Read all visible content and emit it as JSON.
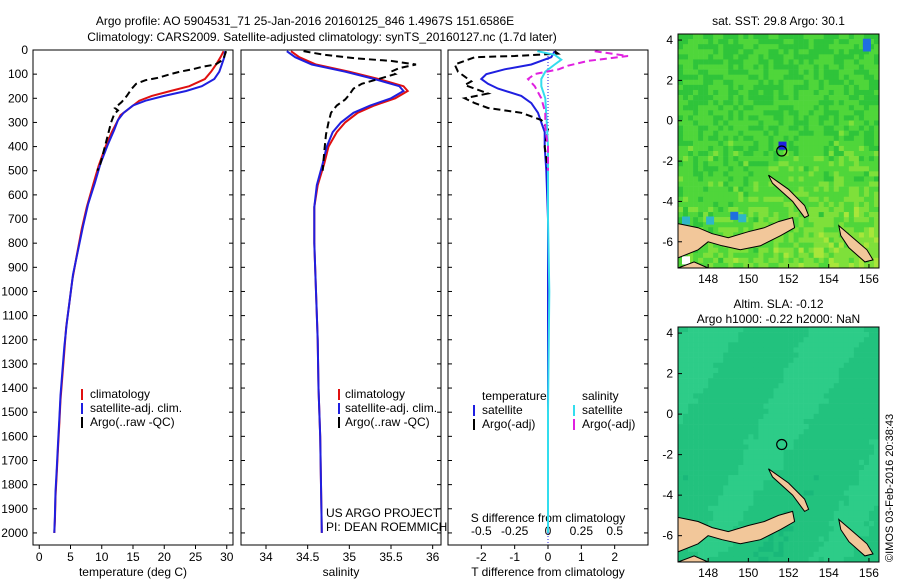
{
  "title": {
    "line1": "Argo profile: AO 5904531_71 25-Jan-2016 20160125_846 1.4967S 151.6586E",
    "line2": "Climatology: CARS2009. Satellite-adjusted climatology: synTS_20160127.nc (1.7d later)"
  },
  "depth_ticks": [
    0,
    100,
    200,
    300,
    400,
    500,
    600,
    700,
    800,
    900,
    1000,
    1100,
    1200,
    1300,
    1400,
    1500,
    1600,
    1700,
    1800,
    1900,
    2000
  ],
  "colors": {
    "climatology": "#e01010",
    "satellite": "#1f1fe0",
    "argo": "#000000",
    "salinity_sat": "#33ddee",
    "salinity_argo": "#e020e0",
    "land": "#f2c79a"
  },
  "chart_data": [
    {
      "type": "line",
      "xlabel": "temperature (deg C)",
      "xlim": [
        -1,
        31
      ],
      "ylim": [
        2050,
        0
      ],
      "x_ticks": [
        0,
        5,
        10,
        15,
        20,
        25,
        30
      ],
      "legend": {
        "placement": "bottom-left",
        "entries": [
          "climatology",
          "satellite-adj. clim.",
          "Argo(..raw -QC)"
        ]
      },
      "series": [
        {
          "name": "climatology",
          "color": "#e01010",
          "points": [
            [
              29.5,
              5
            ],
            [
              29,
              30
            ],
            [
              28.3,
              60
            ],
            [
              27.5,
              90
            ],
            [
              26.5,
              120
            ],
            [
              24,
              150
            ],
            [
              21,
              170
            ],
            [
              18,
              190
            ],
            [
              16,
              210
            ],
            [
              14.5,
              240
            ],
            [
              13,
              270
            ],
            [
              12.4,
              300
            ],
            [
              11.6,
              340
            ],
            [
              10.6,
              400
            ],
            [
              9.5,
              480
            ],
            [
              8.6,
              560
            ],
            [
              7.6,
              650
            ],
            [
              6.8,
              740
            ],
            [
              6,
              850
            ],
            [
              5.3,
              950
            ],
            [
              4.8,
              1050
            ],
            [
              4.3,
              1150
            ],
            [
              4,
              1250
            ],
            [
              3.7,
              1350
            ],
            [
              3.4,
              1450
            ],
            [
              3.2,
              1550
            ],
            [
              3,
              1650
            ],
            [
              2.8,
              1750
            ],
            [
              2.6,
              1850
            ],
            [
              2.5,
              1950
            ],
            [
              2.4,
              2000
            ]
          ]
        },
        {
          "name": "satellite-adj. clim.",
          "color": "#1f1fe0",
          "points": [
            [
              29.7,
              5
            ],
            [
              29.6,
              30
            ],
            [
              29.2,
              60
            ],
            [
              28.8,
              90
            ],
            [
              28,
              120
            ],
            [
              26,
              150
            ],
            [
              23.5,
              170
            ],
            [
              20,
              190
            ],
            [
              17,
              210
            ],
            [
              15,
              230
            ],
            [
              13.5,
              260
            ],
            [
              12.6,
              290
            ],
            [
              12,
              330
            ],
            [
              11,
              390
            ],
            [
              9.8,
              470
            ],
            [
              8.9,
              550
            ],
            [
              7.8,
              640
            ],
            [
              7,
              730
            ],
            [
              6.2,
              830
            ],
            [
              5.4,
              930
            ],
            [
              4.9,
              1030
            ],
            [
              4.4,
              1130
            ],
            [
              4,
              1230
            ],
            [
              3.7,
              1330
            ],
            [
              3.4,
              1430
            ],
            [
              3.2,
              1530
            ],
            [
              3,
              1630
            ],
            [
              2.8,
              1730
            ],
            [
              2.6,
              1830
            ],
            [
              2.5,
              1930
            ],
            [
              2.4,
              2000
            ]
          ]
        },
        {
          "name": "Argo(..raw -QC)",
          "color": "#000000",
          "points": [
            [
              29.9,
              5
            ],
            [
              29.7,
              20
            ],
            [
              29.4,
              40
            ],
            [
              28.2,
              60
            ],
            [
              26,
              70
            ],
            [
              24.5,
              80
            ],
            [
              22.5,
              90
            ],
            [
              21,
              100
            ],
            [
              19,
              115
            ],
            [
              17,
              125
            ],
            [
              15.5,
              140
            ],
            [
              14.8,
              160
            ],
            [
              14,
              190
            ],
            [
              13.2,
              215
            ],
            [
              12.1,
              240
            ],
            [
              12.6,
              250
            ],
            [
              12,
              265
            ],
            [
              11.5,
              300
            ],
            [
              11,
              350
            ],
            [
              10.5,
              400
            ],
            [
              9.8,
              470
            ],
            [
              9.3,
              500
            ]
          ]
        }
      ]
    },
    {
      "type": "line",
      "xlabel": "salinity",
      "xlim": [
        33.7,
        36.1
      ],
      "ylim": [
        2050,
        0
      ],
      "x_ticks": [
        34,
        34.5,
        35,
        35.5,
        36
      ],
      "x_tick_labels": [
        "34",
        "34.5",
        "35",
        "35.5",
        "36"
      ],
      "legend": {
        "placement": "bottom-left",
        "entries": [
          "climatology",
          "satellite-adj. clim.",
          "Argo(..raw -QC)"
        ]
      },
      "annotation": [
        "US ARGO PROJECT",
        "PI: DEAN ROEMMICH"
      ],
      "series": [
        {
          "name": "climatology",
          "color": "#e01010",
          "points": [
            [
              34.3,
              5
            ],
            [
              34.4,
              30
            ],
            [
              34.6,
              60
            ],
            [
              35,
              90
            ],
            [
              35.35,
              120
            ],
            [
              35.65,
              150
            ],
            [
              35.7,
              170
            ],
            [
              35.55,
              200
            ],
            [
              35.3,
              230
            ],
            [
              35.1,
              260
            ],
            [
              34.95,
              300
            ],
            [
              34.85,
              340
            ],
            [
              34.75,
              400
            ],
            [
              34.7,
              470
            ],
            [
              34.62,
              560
            ],
            [
              34.58,
              650
            ],
            [
              34.58,
              800
            ],
            [
              34.6,
              1000
            ],
            [
              34.62,
              1200
            ],
            [
              34.63,
              1400
            ],
            [
              34.65,
              1600
            ],
            [
              34.66,
              1800
            ],
            [
              34.67,
              2000
            ]
          ]
        },
        {
          "name": "satellite-adj. clim.",
          "color": "#1f1fe0",
          "points": [
            [
              34.25,
              5
            ],
            [
              34.35,
              30
            ],
            [
              34.55,
              60
            ],
            [
              34.95,
              90
            ],
            [
              35.3,
              120
            ],
            [
              35.6,
              150
            ],
            [
              35.65,
              170
            ],
            [
              35.5,
              200
            ],
            [
              35.25,
              230
            ],
            [
              35.05,
              260
            ],
            [
              34.9,
              300
            ],
            [
              34.8,
              340
            ],
            [
              34.73,
              400
            ],
            [
              34.68,
              470
            ],
            [
              34.61,
              560
            ],
            [
              34.58,
              650
            ],
            [
              34.58,
              800
            ],
            [
              34.6,
              1000
            ],
            [
              34.62,
              1200
            ],
            [
              34.63,
              1400
            ],
            [
              34.65,
              1600
            ],
            [
              34.66,
              1800
            ],
            [
              34.67,
              2000
            ]
          ]
        },
        {
          "name": "Argo(..raw -QC)",
          "color": "#000000",
          "points": [
            [
              34.45,
              5
            ],
            [
              34.7,
              20
            ],
            [
              35.1,
              35
            ],
            [
              35.5,
              45
            ],
            [
              35.8,
              60
            ],
            [
              35.6,
              75
            ],
            [
              35.5,
              90
            ],
            [
              35.55,
              100
            ],
            [
              35.4,
              115
            ],
            [
              35.3,
              125
            ],
            [
              35.15,
              140
            ],
            [
              35.05,
              160
            ],
            [
              35,
              185
            ],
            [
              34.95,
              205
            ],
            [
              34.85,
              230
            ],
            [
              34.78,
              260
            ],
            [
              34.75,
              300
            ],
            [
              34.72,
              350
            ],
            [
              34.7,
              420
            ],
            [
              34.68,
              500
            ]
          ]
        }
      ]
    },
    {
      "type": "line",
      "xlabel": "T difference from climatology",
      "xlabel_top": "S difference from climatology",
      "xlim": [
        -3,
        3
      ],
      "ylim": [
        2050,
        0
      ],
      "x_ticks": [
        -2,
        -1,
        0,
        1,
        2
      ],
      "x_ticks_top": [
        -0.5,
        -0.25,
        0,
        0.25,
        0.5
      ],
      "x_tick_labels_top": [
        "-0.5",
        "-0.25",
        "0",
        "0.25",
        "0.5"
      ],
      "legend": {
        "placement": "bottom",
        "temperature_title": "temperature",
        "salinity_title": "salinity",
        "temperature_entries": [
          "satellite",
          "Argo(-adj)"
        ],
        "salinity_entries": [
          "satellite",
          "Argo(-adj)"
        ]
      },
      "series": [
        {
          "name": "satellite",
          "group": "temperature",
          "color": "#1f1fe0",
          "points": [
            [
              0.2,
              5
            ],
            [
              0.1,
              30
            ],
            [
              -0.5,
              60
            ],
            [
              -1.3,
              80
            ],
            [
              -1.85,
              100
            ],
            [
              -2,
              120
            ],
            [
              -1.8,
              140
            ],
            [
              -1.5,
              160
            ],
            [
              -0.8,
              190
            ],
            [
              -0.5,
              220
            ],
            [
              -0.3,
              260
            ],
            [
              -0.2,
              300
            ],
            [
              -0.1,
              340
            ],
            [
              -0.1,
              400
            ],
            [
              -0.05,
              500
            ],
            [
              0,
              700
            ],
            [
              0,
              1000
            ],
            [
              0,
              1500
            ],
            [
              0,
              2000
            ]
          ]
        },
        {
          "name": "Argo(-adj)",
          "group": "temperature",
          "color": "#000000",
          "points": [
            [
              0.2,
              5
            ],
            [
              0.3,
              15
            ],
            [
              -1,
              25
            ],
            [
              -2.2,
              30
            ],
            [
              -2.8,
              60
            ],
            [
              -2.7,
              90
            ],
            [
              -2.5,
              110
            ],
            [
              -2.3,
              130
            ],
            [
              -2.5,
              145
            ],
            [
              -2.2,
              160
            ],
            [
              -1.8,
              180
            ],
            [
              -2.5,
              200
            ],
            [
              -2.2,
              220
            ],
            [
              -1.8,
              240
            ],
            [
              -0.8,
              260
            ],
            [
              -0.2,
              290
            ],
            [
              0,
              330
            ],
            [
              -0.1,
              400
            ],
            [
              0,
              500
            ]
          ]
        },
        {
          "name": "satellite",
          "group": "salinity",
          "color": "#33ddee",
          "points": [
            [
              -0.08,
              5
            ],
            [
              0.05,
              20
            ],
            [
              0.1,
              40
            ],
            [
              0.05,
              60
            ],
            [
              -0.02,
              90
            ],
            [
              -0.05,
              120
            ],
            [
              -0.05,
              150
            ],
            [
              -0.02,
              200
            ],
            [
              -0.01,
              300
            ],
            [
              0,
              400
            ],
            [
              0,
              700
            ],
            [
              0.01,
              1000
            ],
            [
              0,
              1500
            ],
            [
              0,
              2000
            ]
          ]
        },
        {
          "name": "Argo(-adj)",
          "group": "salinity",
          "color": "#e020e0",
          "points": [
            [
              0.35,
              5
            ],
            [
              0.6,
              25
            ],
            [
              0.3,
              45
            ],
            [
              0.15,
              65
            ],
            [
              0.08,
              80
            ],
            [
              -0.1,
              100
            ],
            [
              -0.15,
              120
            ],
            [
              -0.1,
              150
            ],
            [
              -0.05,
              200
            ],
            [
              -0.02,
              260
            ],
            [
              -0.02,
              320
            ],
            [
              0,
              400
            ],
            [
              0,
              500
            ]
          ]
        }
      ]
    },
    {
      "type": "heatmap",
      "title": "sat. SST: 29.8 Argo: 30.1",
      "xlim": [
        146.5,
        156.5
      ],
      "ylim": [
        -7.3,
        4.3
      ],
      "x_ticks": [
        148,
        150,
        152,
        154,
        156
      ],
      "y_ticks": [
        4,
        2,
        0,
        -2,
        -4,
        -6
      ],
      "colormap": [
        "#1ca83c",
        "#2fc43a",
        "#4fd63a",
        "#7ee03a",
        "#a8e63a",
        "#d4ef3e"
      ],
      "argo_marker": {
        "lon": 151.66,
        "lat": -1.5
      }
    },
    {
      "type": "heatmap",
      "title": "Altim. SLA: -0.12",
      "subtitle": "Argo h1000: -0.22 h2000: NaN",
      "xlim": [
        146.5,
        156.5
      ],
      "ylim": [
        -7.3,
        4.3
      ],
      "x_ticks": [
        148,
        150,
        152,
        154,
        156
      ],
      "y_ticks": [
        4,
        2,
        0,
        -2,
        -4,
        -6
      ],
      "colormap": [
        "#19b87a",
        "#22c27e",
        "#2dcc88",
        "#44d28a"
      ],
      "argo_marker": {
        "lon": 151.66,
        "lat": -1.5
      }
    }
  ],
  "credit": "©IMOS 03-Feb-2016 20:38:43"
}
